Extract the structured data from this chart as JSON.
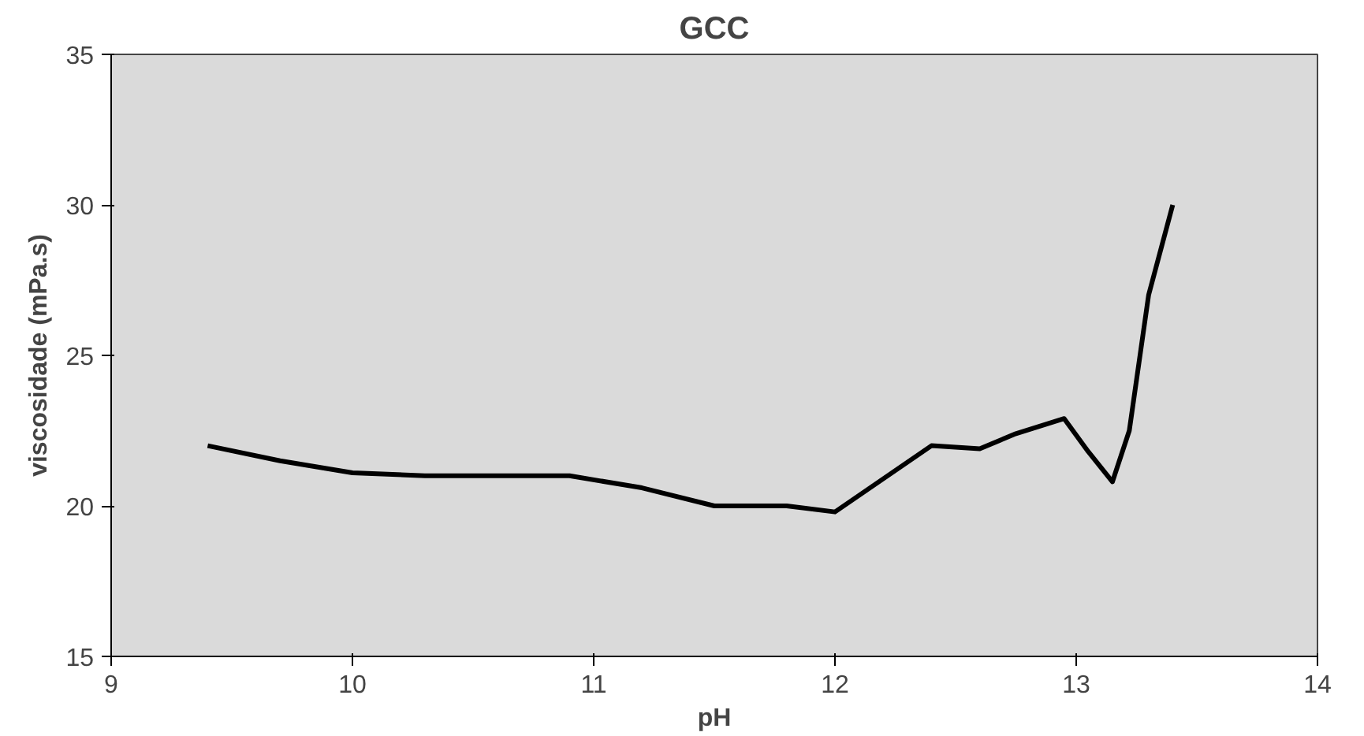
{
  "chart_data": {
    "type": "line",
    "title": "GCC",
    "xlabel": "pH",
    "ylabel": "viscosidade (mPa.s)",
    "xlim": [
      9,
      14
    ],
    "xticks": [
      9,
      10,
      11,
      12,
      13,
      14
    ],
    "ylim": [
      15,
      35
    ],
    "yticks": [
      15,
      20,
      25,
      30,
      35
    ],
    "grid": false,
    "series": [
      {
        "color": "#000000",
        "x": [
          9.4,
          9.7,
          10,
          10.3,
          10.6,
          10.9,
          11.2,
          11.5,
          11.8,
          12,
          12.2,
          12.4,
          12.6,
          12.75,
          12.95,
          13.05,
          13.15,
          13.22,
          13.3,
          13.4
        ],
        "values": [
          22,
          21.5,
          21.1,
          21,
          21,
          21,
          20.6,
          20,
          20,
          19.8,
          20.9,
          22,
          21.9,
          22.4,
          22.9,
          21.8,
          20.8,
          22.5,
          27,
          30
        ]
      }
    ]
  }
}
